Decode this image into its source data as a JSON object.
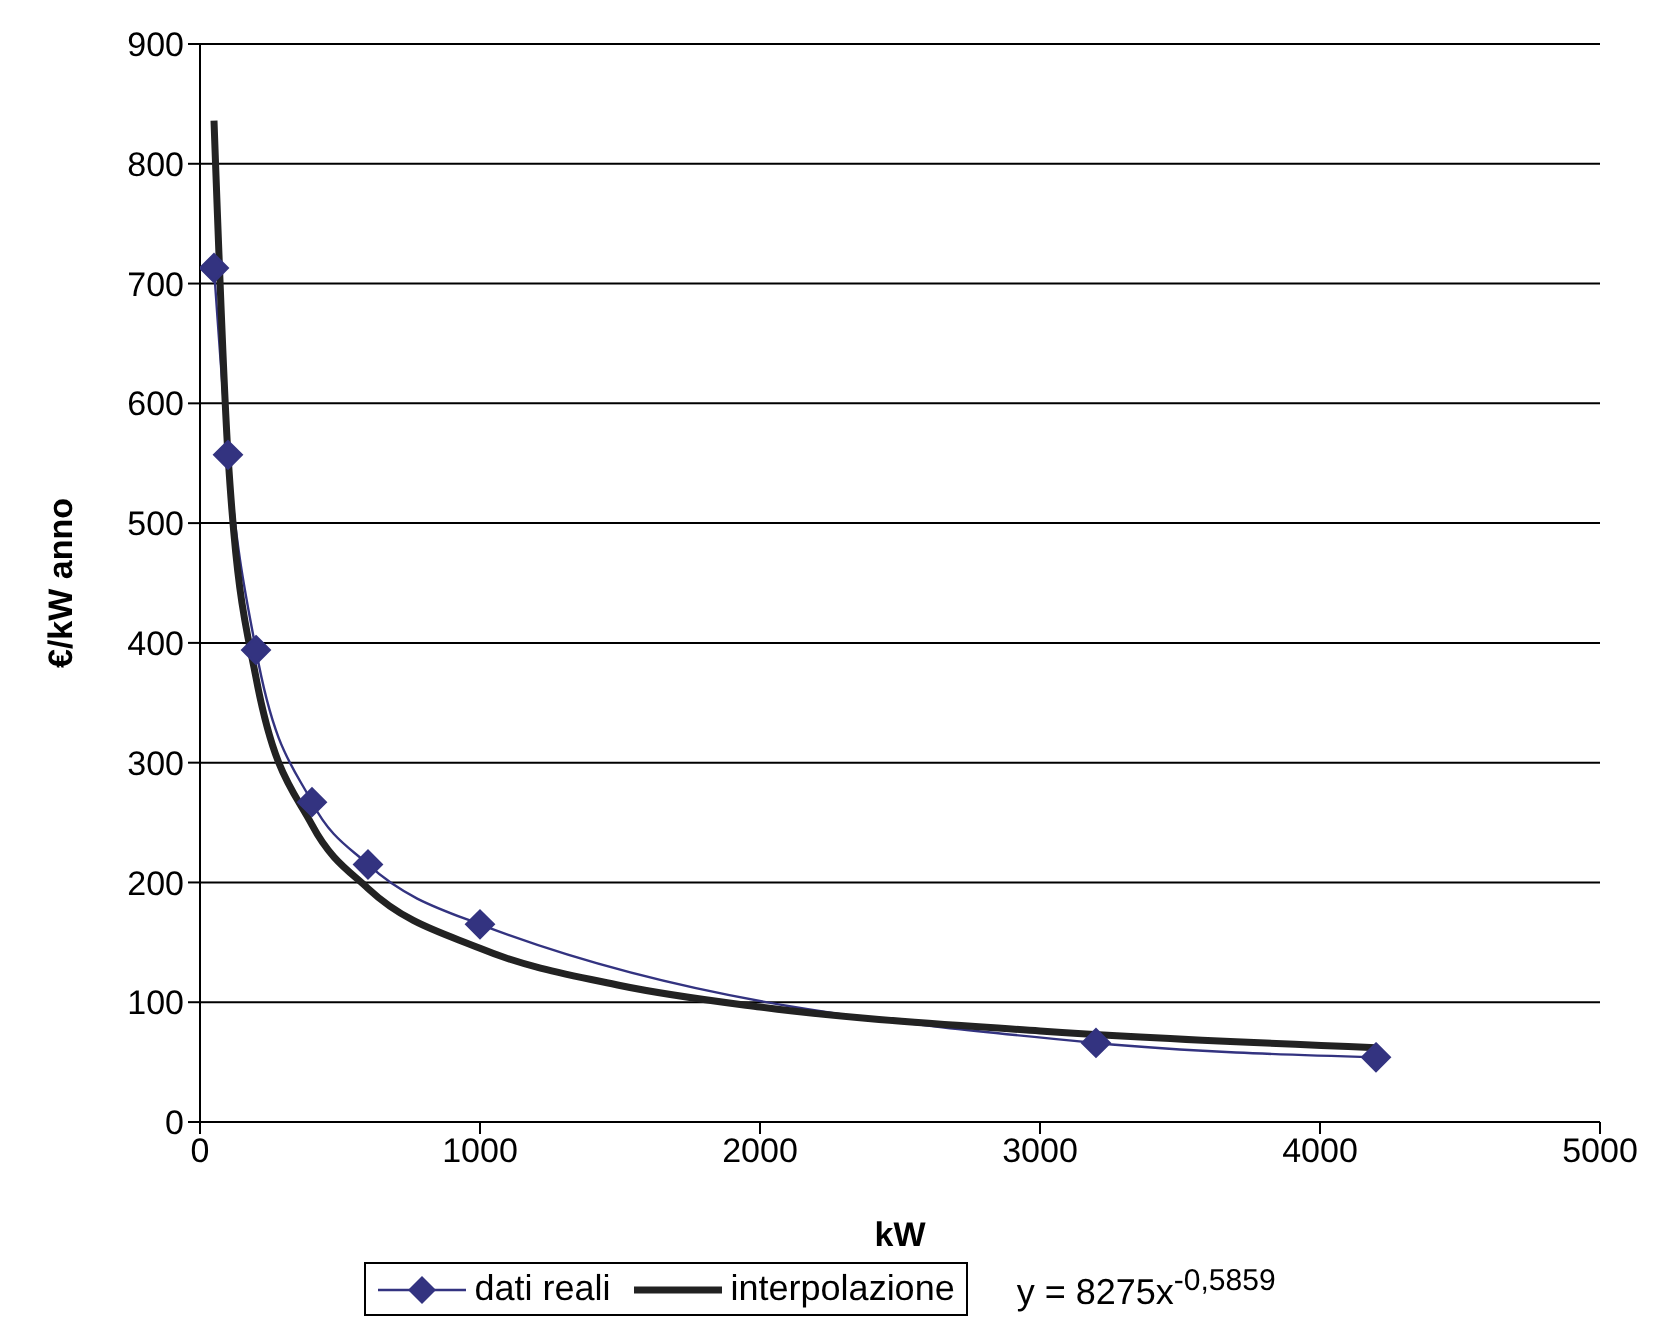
{
  "chart_data": {
    "type": "line",
    "xlabel": "kW",
    "ylabel": "€/kW anno",
    "xlim": [
      0,
      5000
    ],
    "xticks": [
      0,
      1000,
      2000,
      3000,
      4000,
      5000
    ],
    "ylim": [
      0,
      900
    ],
    "yticks": [
      0,
      100,
      200,
      300,
      400,
      500,
      600,
      700,
      800,
      900
    ],
    "grid": "y",
    "legend": "bottom",
    "series": [
      {
        "name": "dati reali",
        "color": "#333380",
        "marker": "diamond",
        "x": [
          50,
          100,
          200,
          400,
          600,
          1000,
          3200,
          4200
        ],
        "values": [
          713,
          557,
          394,
          267,
          215,
          165,
          66,
          54
        ]
      },
      {
        "name": "interpolazione",
        "color": "#222222",
        "marker": "none",
        "x": [
          50,
          100,
          200,
          400,
          600,
          1000,
          1500,
          2000,
          3000,
          4200
        ],
        "values": [
          836,
          557,
          371,
          248,
          195,
          145,
          114,
          96,
          76,
          62
        ]
      }
    ],
    "annotations": [
      "y = 8275x$^{-0,5859}$"
    ]
  }
}
